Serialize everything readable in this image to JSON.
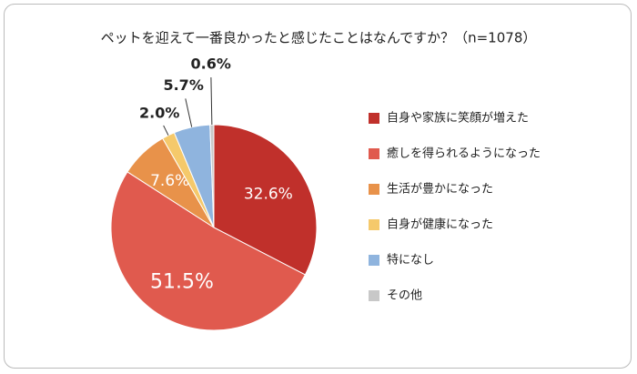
{
  "chart_data": {
    "type": "pie",
    "title": "ペットを迎えて一番良かったと感じたことはなんですか？（n=1078）",
    "categories": [
      "自身や家族に笑顔が増えた",
      "癒しを得られるようになった",
      "生活が豊かになった",
      "自身が健康になった",
      "特になし",
      "その他"
    ],
    "values": [
      32.6,
      51.5,
      7.6,
      2.0,
      5.7,
      0.6
    ],
    "value_labels": [
      "32.6%",
      "51.5%",
      "7.6%",
      "2.0%",
      "5.7%",
      "0.6%"
    ],
    "colors": [
      "#c0302b",
      "#e05a4e",
      "#e8924a",
      "#f5c96b",
      "#8fb4de",
      "#c8c8c8"
    ],
    "legend": "right"
  }
}
